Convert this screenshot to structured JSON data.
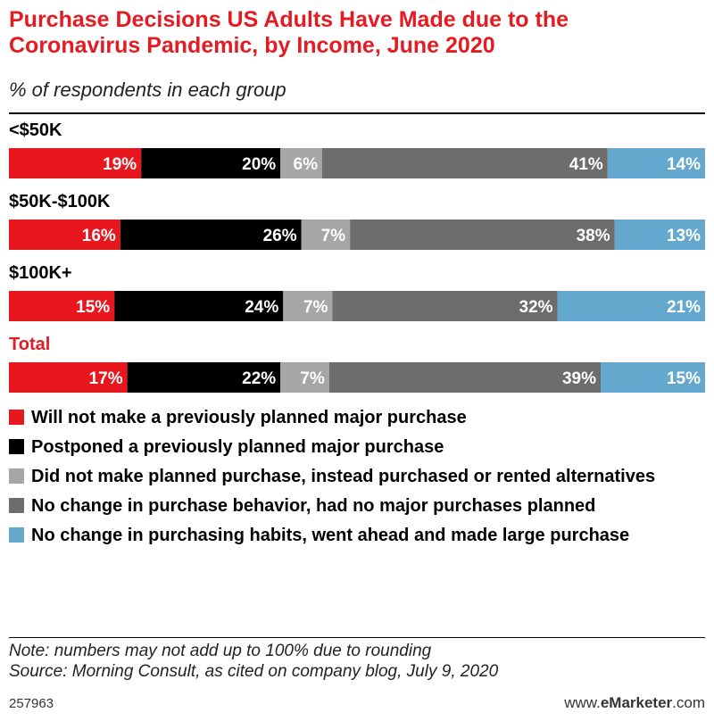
{
  "header": {
    "title": "Purchase Decisions US Adults Have Made due to the Coronavirus Pandemic, by Income, June 2020",
    "subtitle": "% of respondents in each group"
  },
  "colors": {
    "title": "#e31b23",
    "total_label": "#e31b23",
    "series": [
      "#e8161d",
      "#000000",
      "#a6a6a6",
      "#6d6d6d",
      "#64a8ce"
    ]
  },
  "chart_data": {
    "type": "bar",
    "stacked": true,
    "orientation": "horizontal",
    "categories": [
      "<$50K",
      "$50K-$100K",
      "$100K+",
      "Total"
    ],
    "series": [
      {
        "name": "Will not make a previously planned major purchase",
        "values": [
          19,
          16,
          15,
          17
        ]
      },
      {
        "name": "Postponed a previously planned major purchase",
        "values": [
          20,
          26,
          24,
          22
        ]
      },
      {
        "name": "Did not make planned purchase, instead purchased or rented alternatives",
        "values": [
          6,
          7,
          7,
          7
        ]
      },
      {
        "name": "No change in purchase behavior, had no major purchases planned",
        "values": [
          41,
          38,
          32,
          39
        ]
      },
      {
        "name": "No change in purchasing habits, went ahead and made large purchase",
        "values": [
          14,
          13,
          21,
          15
        ]
      }
    ],
    "value_suffix": "%",
    "legend_position": "bottom"
  },
  "footer": {
    "note": "Note: numbers may not add up to 100% due to rounding",
    "source": "Source: Morning Consult, as cited on company blog, July 9, 2020",
    "chart_id": "257963",
    "brand_prefix": "www.",
    "brand_bold": "eMarketer",
    "brand_suffix": ".com"
  }
}
